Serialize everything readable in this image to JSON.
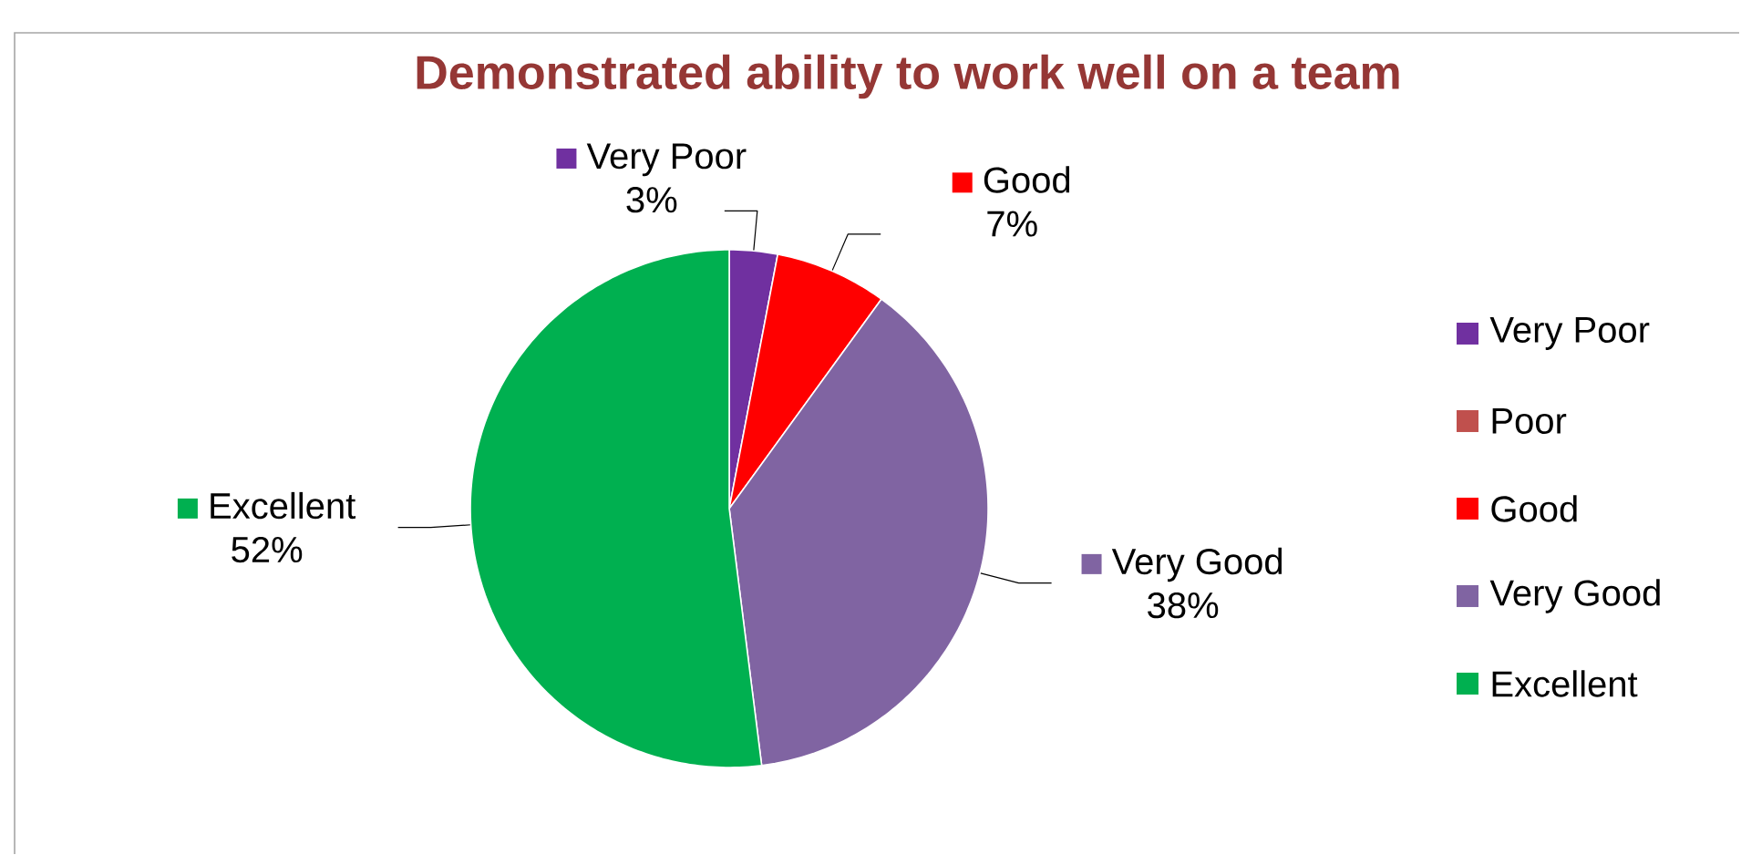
{
  "chart_data": {
    "type": "pie",
    "title": "Demonstrated ability to work well on a team",
    "categories": [
      "Very Poor",
      "Poor",
      "Good",
      "Very Good",
      "Excellent"
    ],
    "values": [
      3,
      0,
      7,
      38,
      52
    ],
    "value_labels": [
      "3%",
      null,
      "7%",
      "38%",
      "52%"
    ],
    "colors": [
      "#7030a0",
      "#c0504d",
      "#ff0000",
      "#8064a2",
      "#00b050"
    ],
    "legend": "right"
  }
}
